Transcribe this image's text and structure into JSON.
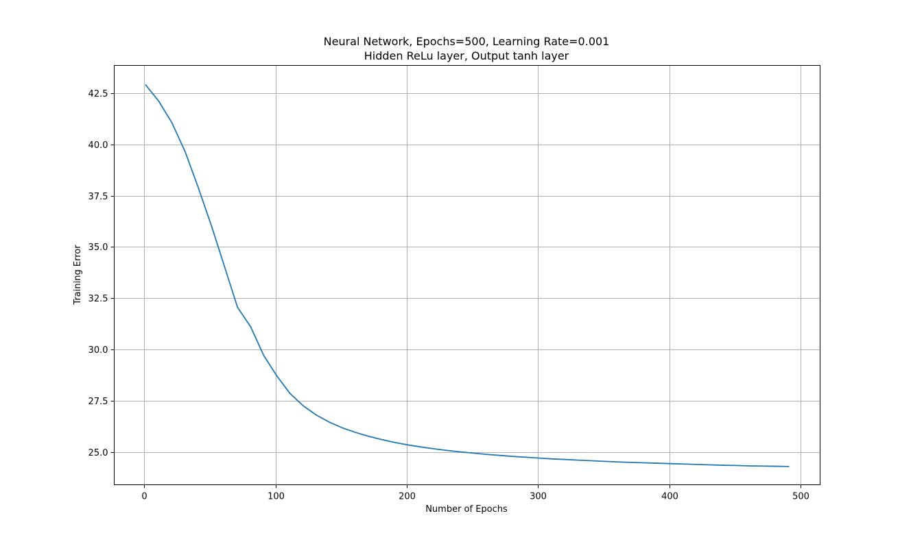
{
  "chart_data": {
    "type": "line",
    "title": "Neural Network, Epochs=500, Learning Rate=0.001",
    "subtitle": "Hidden ReLu layer, Output tanh layer",
    "xlabel": "Number of Epochs",
    "ylabel": "Training Error",
    "xlim": [
      -23,
      515
    ],
    "ylim": [
      23.4,
      43.85
    ],
    "xticks": [
      0,
      100,
      200,
      300,
      400,
      500
    ],
    "yticks": [
      25.0,
      27.5,
      30.0,
      32.5,
      35.0,
      37.5,
      40.0,
      42.5
    ],
    "xtick_labels": [
      "0",
      "100",
      "200",
      "300",
      "400",
      "500"
    ],
    "ytick_labels": [
      "25.0",
      "27.5",
      "30.0",
      "32.5",
      "35.0",
      "37.5",
      "40.0",
      "42.5"
    ],
    "grid": true,
    "series": [
      {
        "color": "#1f77b4",
        "x": [
          1,
          11,
          21,
          31,
          41,
          51,
          61,
          71,
          81,
          91,
          101,
          111,
          121,
          131,
          141,
          151,
          161,
          171,
          181,
          191,
          201,
          211,
          221,
          231,
          241,
          251,
          261,
          271,
          281,
          291,
          301,
          311,
          321,
          331,
          341,
          351,
          361,
          371,
          381,
          391,
          401,
          411,
          421,
          431,
          441,
          451,
          461,
          471,
          481,
          491
        ],
        "y": [
          42.9,
          42.1,
          41.05,
          39.65,
          37.9,
          36.05,
          34.05,
          32.05,
          31.1,
          29.7,
          28.7,
          27.85,
          27.25,
          26.8,
          26.45,
          26.17,
          25.95,
          25.76,
          25.6,
          25.46,
          25.34,
          25.24,
          25.15,
          25.07,
          25.0,
          24.94,
          24.88,
          24.83,
          24.78,
          24.74,
          24.7,
          24.66,
          24.63,
          24.6,
          24.57,
          24.54,
          24.51,
          24.49,
          24.47,
          24.45,
          24.43,
          24.41,
          24.39,
          24.37,
          24.35,
          24.34,
          24.32,
          24.31,
          24.3,
          24.29
        ]
      }
    ]
  }
}
